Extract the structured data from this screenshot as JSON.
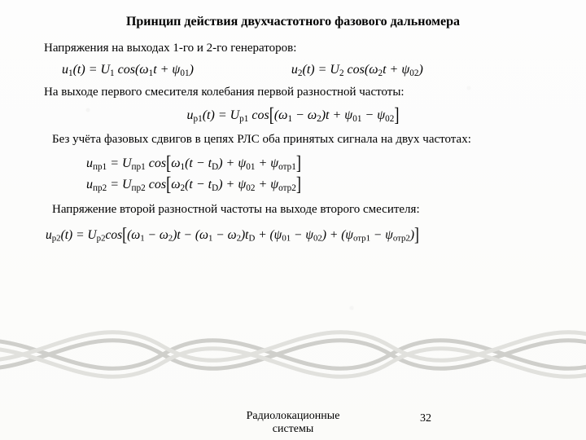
{
  "title": "Принцип действия двухчастотного фазового дальномера",
  "p1": "Напряжения на выходах 1-го и 2-го генераторов:",
  "eq1a": "u<sub>1</sub>(t) = U<sub>1</sub> cos(ω<sub>1</sub>t + ψ<sub>01</sub>)",
  "eq1b": "u<sub>2</sub>(t) = U<sub>2</sub> cos(ω<sub>2</sub>t + ψ<sub>02</sub>)",
  "p2": "На выходе первого смесителя колебания первой разностной частоты:",
  "eq2": "u<sub>p1</sub>(t) = U<sub>p1</sub> cos<span class=\"lbracket\">[</span>(ω<sub>1</sub> − ω<sub>2</sub>)t + ψ<sub>01</sub> − ψ<sub>02</sub><span class=\"rbracket\">]</span>",
  "p3": "Без учёта фазовых сдвигов в цепях РЛС оба принятых сигнала на двух частотах:",
  "eq3a": "u<sub>пр1</sub> = U<sub>пр1</sub> cos<span class=\"lbracket\">[</span>ω<sub>1</sub>(t − t<sub>D</sub>) + ψ<sub>01</sub> + ψ<sub>отр1</sub><span class=\"rbracket\">]</span>",
  "eq3b": "u<sub>пр2</sub> = U<sub>пр2</sub> cos<span class=\"lbracket\">[</span>ω<sub>2</sub>(t − t<sub>D</sub>) + ψ<sub>02</sub> + ψ<sub>отр2</sub><span class=\"rbracket\">]</span>",
  "p4": "Напряжение второй разностной частоты на выходе второго смесителя:",
  "eq4": "u<sub>p2</sub>(t) = U<sub>p2</sub>cos<span class=\"lbracket\">[</span>(ω<sub>1</sub> − ω<sub>2</sub>)t − (ω<sub>1</sub> − ω<sub>2</sub>)t<sub>D</sub> + (ψ<sub>01</sub> − ψ<sub>02</sub>) + (ψ<sub>отр1</sub> − ψ<sub>отр2</sub>)<span class=\"rbracket\">]</span>",
  "footer": "Радиолокационные системы",
  "page_number": "32"
}
